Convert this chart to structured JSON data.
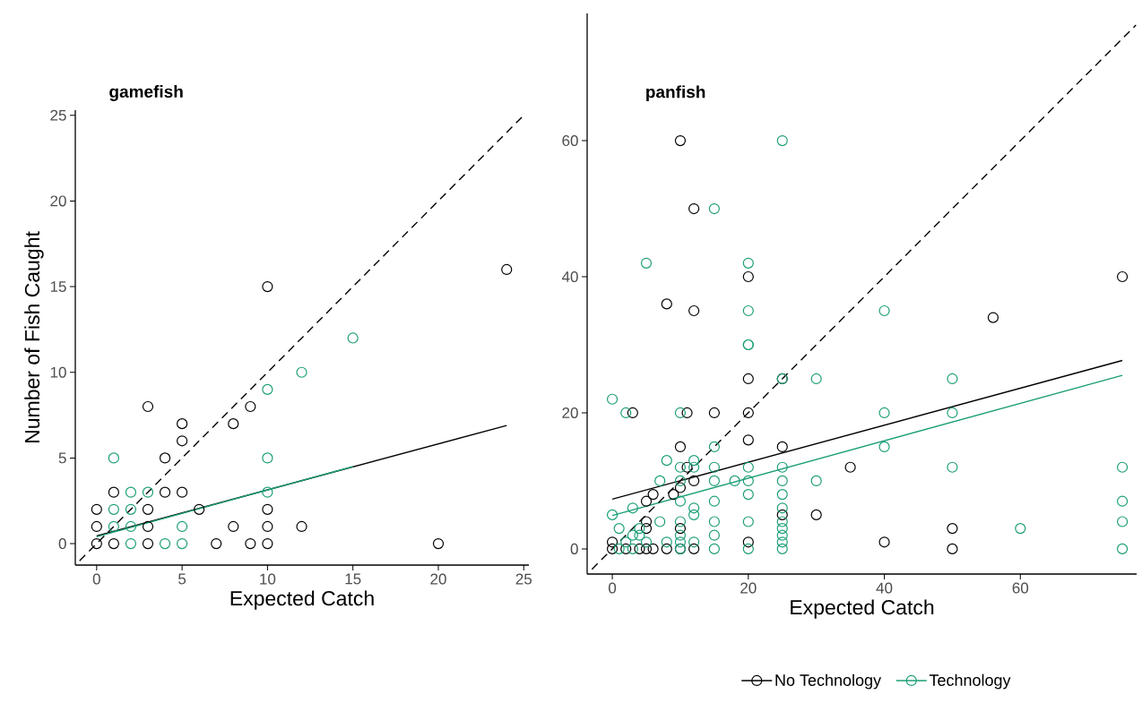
{
  "chart_data": [
    {
      "type": "scatter",
      "title": "gamefish",
      "xlabel": "Expected Catch",
      "ylabel": "Number of Fish Caught",
      "marker": "circle",
      "xlim": [
        -1.25,
        25.3
      ],
      "ylim": [
        -1.25,
        25.3
      ],
      "xticks": [
        0,
        5,
        10,
        15,
        20,
        25
      ],
      "yticks": [
        0,
        5,
        10,
        15,
        20,
        25
      ],
      "series": [
        {
          "color": "#000000",
          "x": [
            0,
            1,
            3,
            7,
            9,
            10,
            20,
            0,
            3,
            8,
            10,
            12,
            0,
            3,
            6,
            10,
            1,
            4,
            5,
            4,
            5,
            5,
            8,
            3,
            9,
            10,
            24
          ],
          "values": [
            0,
            0,
            0,
            0,
            0,
            0,
            0,
            1,
            1,
            1,
            1,
            1,
            2,
            2,
            2,
            2,
            3,
            3,
            3,
            5,
            6,
            7,
            7,
            8,
            8,
            15,
            16
          ]
        },
        {
          "color": "#1b9e77",
          "x": [
            2,
            4,
            5,
            1,
            2,
            5,
            1,
            2,
            2,
            3,
            10,
            1,
            10,
            10,
            12,
            15
          ],
          "values": [
            0,
            0,
            0,
            1,
            1,
            1,
            2,
            2,
            3,
            3,
            3,
            5,
            5,
            9,
            10,
            12
          ]
        },
        {
          "type": "line",
          "marker": "none",
          "color": "#000000",
          "x": [
            0,
            24
          ],
          "values": [
            0.45,
            6.9
          ]
        },
        {
          "type": "line",
          "marker": "none",
          "color": "#1b9e77",
          "x": [
            0,
            15
          ],
          "values": [
            0.4,
            4.5
          ]
        },
        {
          "type": "line",
          "marker": "none",
          "color": "#000000",
          "line_style": "dashed",
          "x": [
            -1,
            25
          ],
          "values": [
            -1,
            25
          ]
        }
      ]
    },
    {
      "type": "scatter",
      "title": "panfish",
      "xlabel": "Expected Catch",
      "marker": "circle",
      "legend": "bottom",
      "xlim": [
        -3.7,
        77.1
      ],
      "ylim": [
        -3.7,
        78.7
      ],
      "xticks": [
        0,
        20,
        40,
        60
      ],
      "yticks": [
        0,
        20,
        40,
        60
      ],
      "series": [
        {
          "name": "No Technology",
          "color": "#000000",
          "x": [
            0,
            2,
            4,
            5,
            6,
            8,
            10,
            12,
            50,
            0,
            20,
            40,
            10,
            50,
            5,
            5,
            25,
            30,
            6,
            9,
            5,
            10,
            12,
            11,
            35,
            20,
            10,
            25,
            3,
            11,
            15,
            20,
            20,
            25,
            56,
            12,
            8,
            20,
            75,
            12,
            10
          ],
          "values": [
            0,
            0,
            0,
            0,
            0,
            0,
            0,
            0,
            0,
            1,
            1,
            1,
            3,
            3,
            3,
            4,
            5,
            5,
            8,
            8,
            7,
            9,
            10,
            12,
            12,
            16,
            15,
            15,
            20,
            20,
            20,
            20,
            25,
            25,
            34,
            35,
            36,
            40,
            40,
            50,
            60
          ]
        },
        {
          "name": "Technology",
          "color": "#1b9e77",
          "x": [
            1,
            3,
            10,
            15,
            20,
            25,
            75,
            2,
            5,
            8,
            10,
            12,
            25,
            3,
            4,
            10,
            15,
            25,
            1,
            4,
            25,
            60,
            7,
            10,
            15,
            20,
            25,
            75,
            0,
            12,
            3,
            12,
            25,
            10,
            15,
            75,
            20,
            25,
            7,
            10,
            15,
            18,
            20,
            25,
            30,
            10,
            12,
            15,
            20,
            25,
            50,
            75,
            8,
            12,
            15,
            40,
            2,
            10,
            40,
            50,
            0,
            20,
            25,
            30,
            50,
            20,
            20,
            40,
            5,
            20,
            15,
            25
          ],
          "values": [
            0,
            0,
            0,
            0,
            0,
            0,
            0,
            1,
            1,
            1,
            1,
            1,
            1,
            2,
            2,
            2,
            2,
            2,
            3,
            3,
            3,
            3,
            4,
            4,
            4,
            4,
            4,
            4,
            5,
            5,
            6,
            6,
            6,
            7,
            7,
            7,
            8,
            8,
            10,
            10,
            10,
            10,
            10,
            10,
            10,
            12,
            12,
            12,
            12,
            12,
            12,
            12,
            13,
            13,
            15,
            15,
            20,
            20,
            20,
            20,
            22,
            30,
            25,
            25,
            25,
            35,
            42,
            35,
            42,
            30,
            50,
            60
          ]
        },
        {
          "type": "line",
          "marker": "none",
          "color": "#000000",
          "x": [
            0,
            75
          ],
          "values": [
            7.3,
            27.7
          ]
        },
        {
          "type": "line",
          "marker": "none",
          "color": "#1b9e77",
          "x": [
            0,
            75
          ],
          "values": [
            4.9,
            25.5
          ]
        },
        {
          "type": "line",
          "marker": "none",
          "color": "#000000",
          "line_style": "dashed",
          "x": [
            -3,
            77
          ],
          "values": [
            -3,
            77
          ]
        }
      ]
    }
  ]
}
